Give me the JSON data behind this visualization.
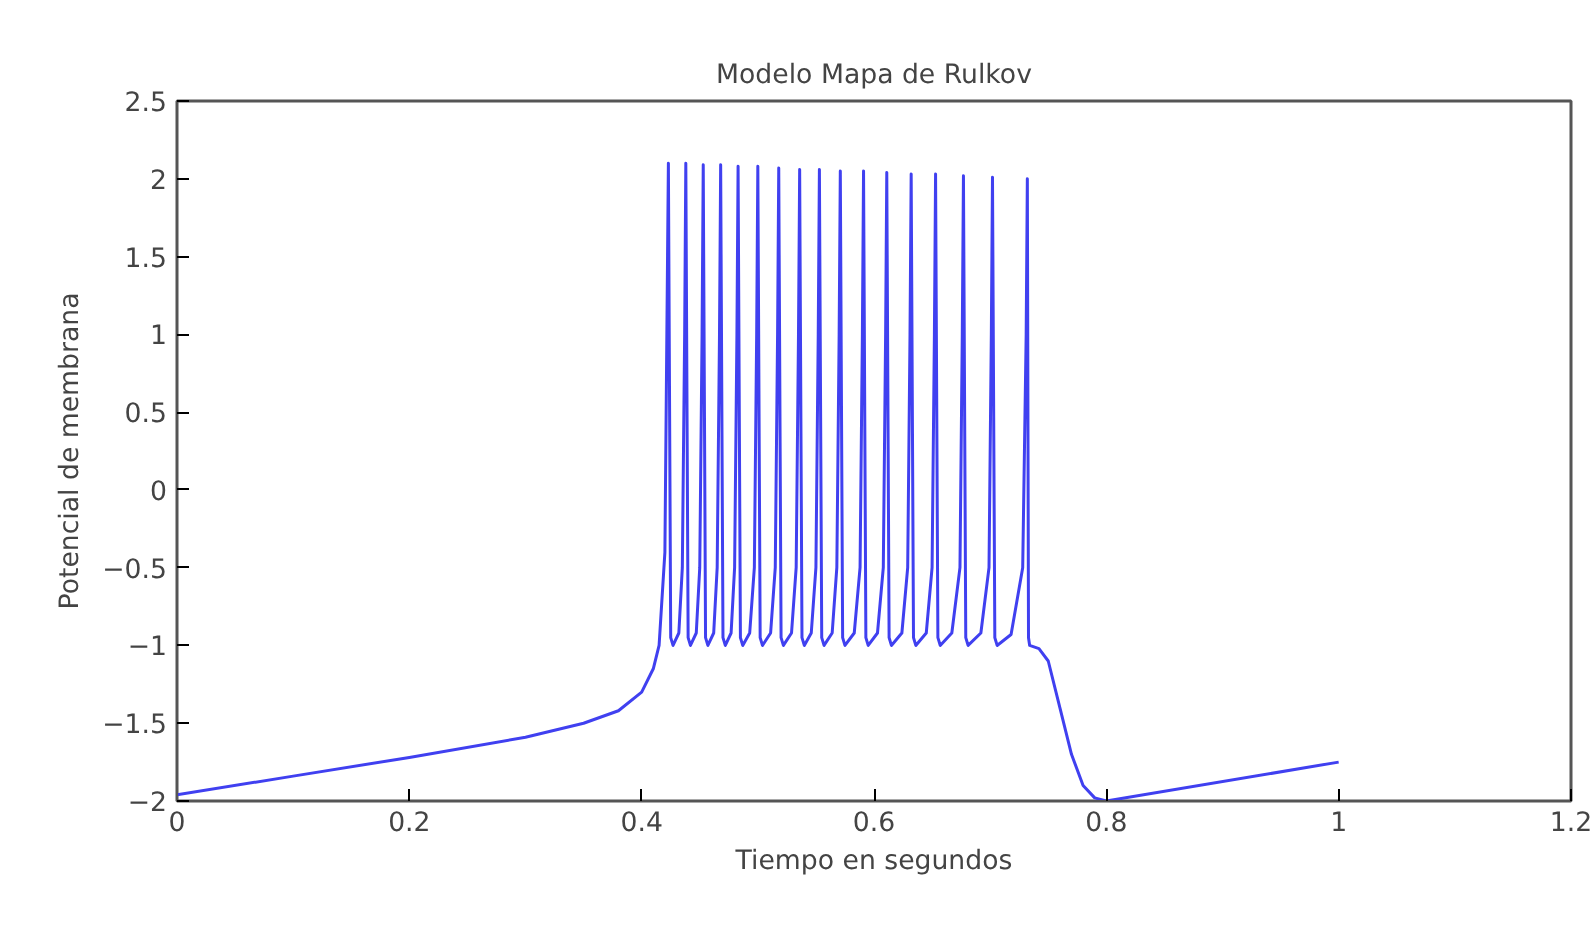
{
  "chart_data": {
    "type": "line",
    "title": "Modelo Mapa de Rulkov",
    "xlabel": "Tiempo en segundos",
    "ylabel": "Potencial de membrana",
    "xlim": [
      0,
      1.2
    ],
    "xticks": [
      0,
      0.2,
      0.4,
      0.6,
      0.8,
      1,
      1.2
    ],
    "ylim": [
      -2,
      2.5
    ],
    "yticks": [
      -2,
      -1.5,
      -1,
      -0.5,
      0,
      0.5,
      1,
      1.5,
      2,
      2.5
    ],
    "grid": false,
    "line_style": "solid",
    "series": [
      {
        "color": "#4040f0",
        "x": [
          0,
          0.1,
          0.2,
          0.3,
          0.35,
          0.38,
          0.4,
          0.41,
          0.415,
          0.42,
          0.423,
          0.425,
          0.427,
          0.432,
          0.435,
          0.437,
          0.438,
          0.44,
          0.442,
          0.447,
          0.45,
          0.452,
          0.453,
          0.455,
          0.457,
          0.462,
          0.465,
          0.467,
          0.468,
          0.47,
          0.472,
          0.477,
          0.48,
          0.482,
          0.483,
          0.485,
          0.487,
          0.493,
          0.497,
          0.499,
          0.5,
          0.502,
          0.504,
          0.511,
          0.515,
          0.517,
          0.518,
          0.52,
          0.522,
          0.529,
          0.533,
          0.535,
          0.536,
          0.538,
          0.54,
          0.546,
          0.55,
          0.552,
          0.553,
          0.555,
          0.557,
          0.564,
          0.568,
          0.57,
          0.571,
          0.573,
          0.575,
          0.583,
          0.588,
          0.59,
          0.591,
          0.593,
          0.595,
          0.603,
          0.608,
          0.61,
          0.611,
          0.613,
          0.615,
          0.624,
          0.629,
          0.631,
          0.632,
          0.634,
          0.636,
          0.645,
          0.65,
          0.652,
          0.653,
          0.655,
          0.657,
          0.667,
          0.674,
          0.676,
          0.677,
          0.679,
          0.681,
          0.692,
          0.699,
          0.701,
          0.702,
          0.704,
          0.706,
          0.718,
          0.728,
          0.731,
          0.732,
          0.733,
          0.734,
          0.742,
          0.75,
          0.76,
          0.77,
          0.78,
          0.79,
          0.8,
          1.0
        ],
        "values": [
          -1.96,
          -1.84,
          -1.72,
          -1.59,
          -1.5,
          -1.42,
          -1.3,
          -1.15,
          -1.0,
          -0.4,
          2.1,
          -0.95,
          -1.0,
          -0.92,
          -0.5,
          1.0,
          2.1,
          -0.95,
          -1.0,
          -0.92,
          -0.5,
          1.0,
          2.09,
          -0.95,
          -1.0,
          -0.92,
          -0.5,
          1.0,
          2.09,
          -0.95,
          -1.0,
          -0.92,
          -0.5,
          1.0,
          2.08,
          -0.95,
          -1.0,
          -0.92,
          -0.5,
          1.0,
          2.08,
          -0.95,
          -1.0,
          -0.92,
          -0.5,
          1.0,
          2.07,
          -0.95,
          -1.0,
          -0.92,
          -0.5,
          1.0,
          2.06,
          -0.95,
          -1.0,
          -0.92,
          -0.5,
          1.0,
          2.06,
          -0.95,
          -1.0,
          -0.92,
          -0.5,
          1.0,
          2.05,
          -0.95,
          -1.0,
          -0.92,
          -0.5,
          1.0,
          2.05,
          -0.95,
          -1.0,
          -0.92,
          -0.5,
          1.0,
          2.04,
          -0.95,
          -1.0,
          -0.92,
          -0.5,
          1.0,
          2.03,
          -0.95,
          -1.0,
          -0.92,
          -0.5,
          1.0,
          2.03,
          -0.95,
          -1.0,
          -0.92,
          -0.5,
          1.0,
          2.02,
          -0.95,
          -1.0,
          -0.92,
          -0.5,
          1.0,
          2.01,
          -0.95,
          -1.0,
          -0.93,
          -0.5,
          1.0,
          2.0,
          -0.95,
          -1.0,
          -1.02,
          -1.1,
          -1.4,
          -1.7,
          -1.9,
          -1.98,
          -2.0,
          -1.75
        ]
      }
    ]
  }
}
